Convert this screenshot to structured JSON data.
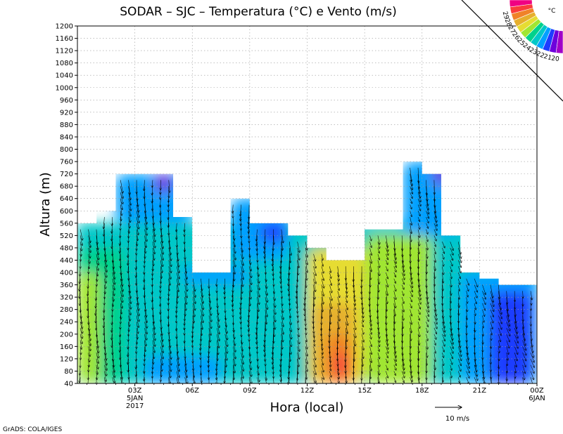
{
  "chart_data": {
    "type": "heatmap",
    "title": "SODAR – SJC – Temperatura (°C) e Vento (m/s)",
    "xlabel": "Hora (local)",
    "ylabel": "Altura (m)",
    "ylim": [
      40,
      1200
    ],
    "y_ticks": [
      40,
      80,
      120,
      160,
      200,
      240,
      280,
      320,
      360,
      400,
      440,
      480,
      520,
      560,
      600,
      640,
      680,
      720,
      760,
      800,
      840,
      880,
      920,
      960,
      1000,
      1040,
      1080,
      1120,
      1160,
      1200
    ],
    "x_range_hours": [
      0,
      24
    ],
    "x_ticks": [
      {
        "hour": 3,
        "label": "03Z",
        "sub1": "5JAN",
        "sub2": "2017"
      },
      {
        "hour": 6,
        "label": "06Z"
      },
      {
        "hour": 9,
        "label": "09Z"
      },
      {
        "hour": 12,
        "label": "12Z"
      },
      {
        "hour": 15,
        "label": "15Z"
      },
      {
        "hour": 18,
        "label": "18Z"
      },
      {
        "hour": 21,
        "label": "21Z"
      },
      {
        "hour": 24,
        "label": "00Z",
        "sub1": "6JAN"
      }
    ],
    "grid": true,
    "colorbar": {
      "unit": "°C",
      "levels": [
        20,
        21,
        22,
        23,
        24,
        25,
        26,
        27,
        28,
        29
      ],
      "colors": [
        "#a000c8",
        "#6e00dc",
        "#1e3cff",
        "#00a0ff",
        "#00c8c8",
        "#00d28c",
        "#a0e632",
        "#e6dc32",
        "#e6af2d",
        "#f08228",
        "#fa3c3c",
        "#f00082"
      ]
    },
    "wind_reference": {
      "label": "10 m/s",
      "speed": 10
    },
    "data_top_heights": [
      {
        "from": 0.0,
        "to": 1.0,
        "top": 560
      },
      {
        "from": 1.0,
        "to": 2.0,
        "top": 600
      },
      {
        "from": 2.0,
        "to": 5.0,
        "top": 720
      },
      {
        "from": 5.0,
        "to": 6.0,
        "top": 580
      },
      {
        "from": 6.0,
        "to": 8.0,
        "top": 400
      },
      {
        "from": 8.0,
        "to": 9.0,
        "top": 640
      },
      {
        "from": 9.0,
        "to": 11.0,
        "top": 560
      },
      {
        "from": 11.0,
        "to": 12.0,
        "top": 520
      },
      {
        "from": 12.0,
        "to": 13.0,
        "top": 480
      },
      {
        "from": 13.0,
        "to": 15.0,
        "top": 440
      },
      {
        "from": 15.0,
        "to": 17.0,
        "top": 540
      },
      {
        "from": 17.0,
        "to": 18.0,
        "top": 760
      },
      {
        "from": 18.0,
        "to": 19.0,
        "top": 720
      },
      {
        "from": 19.0,
        "to": 20.0,
        "top": 520
      },
      {
        "from": 20.0,
        "to": 21.0,
        "top": 400
      },
      {
        "from": 21.0,
        "to": 22.0,
        "top": 380
      },
      {
        "from": 22.0,
        "to": 24.0,
        "top": 360
      }
    ],
    "temperature_fields": [
      {
        "value": 23.8,
        "x": [
          0,
          24
        ],
        "y": [
          40,
          560
        ]
      },
      {
        "value": 24.5,
        "x": [
          0,
          2.5
        ],
        "y": [
          40,
          480
        ]
      },
      {
        "value": 25.2,
        "x": [
          0,
          1.2
        ],
        "y": [
          40,
          400
        ]
      },
      {
        "value": 22.6,
        "x": [
          2,
          6
        ],
        "y": [
          560,
          720
        ]
      },
      {
        "value": 20.6,
        "x": [
          4,
          5
        ],
        "y": [
          660,
          720
        ]
      },
      {
        "value": 22.5,
        "x": [
          5.5,
          9
        ],
        "y": [
          360,
          420
        ]
      },
      {
        "value": 22.6,
        "x": [
          8,
          11
        ],
        "y": [
          440,
          640
        ]
      },
      {
        "value": 21.6,
        "x": [
          9.5,
          11
        ],
        "y": [
          500,
          560
        ]
      },
      {
        "value": 22.8,
        "x": [
          3.5,
          7.5
        ],
        "y": [
          40,
          130
        ]
      },
      {
        "value": 26.5,
        "x": [
          12,
          15
        ],
        "y": [
          40,
          480
        ]
      },
      {
        "value": 27.8,
        "x": [
          12.3,
          14.5
        ],
        "y": [
          40,
          300
        ]
      },
      {
        "value": 28.7,
        "x": [
          13,
          14.3
        ],
        "y": [
          40,
          200
        ]
      },
      {
        "value": 29.2,
        "x": [
          13.4,
          14.2
        ],
        "y": [
          60,
          140
        ]
      },
      {
        "value": 25.6,
        "x": [
          15,
          18.5
        ],
        "y": [
          40,
          520
        ]
      },
      {
        "value": 22.7,
        "x": [
          17,
          20
        ],
        "y": [
          520,
          760
        ]
      },
      {
        "value": 20.4,
        "x": [
          18.6,
          19.3
        ],
        "y": [
          680,
          760
        ]
      },
      {
        "value": 22.6,
        "x": [
          20,
          24
        ],
        "y": [
          40,
          400
        ]
      },
      {
        "value": 21.6,
        "x": [
          21.5,
          23.8
        ],
        "y": [
          40,
          340
        ]
      }
    ]
  },
  "footer": {
    "credit": "GrADS: COLA/IGES"
  }
}
